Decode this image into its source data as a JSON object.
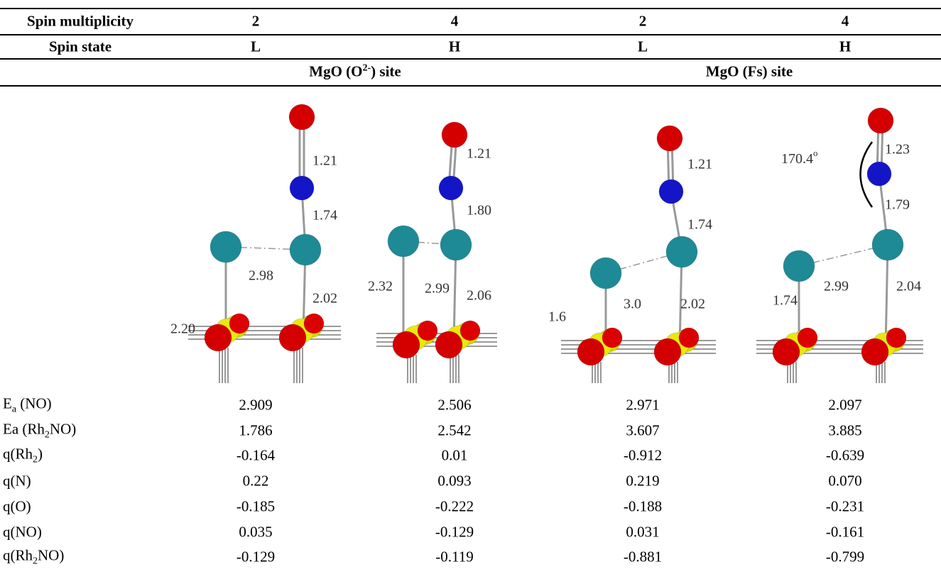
{
  "table": {
    "header_rows": [
      [
        "Spin multiplicity",
        "2",
        "4",
        "2",
        "4"
      ],
      [
        "Spin state",
        "L",
        "H",
        "L",
        "H"
      ]
    ],
    "site_groups": [
      {
        "text": "MgO (O",
        "sup": "2-",
        "after": ") site"
      },
      {
        "text": "MgO (Fs) site"
      }
    ],
    "figures": [
      {
        "labels": [
          "1.21",
          "1.74",
          "2.98",
          "2.02",
          "2.20"
        ]
      },
      {
        "labels": [
          "1.21",
          "1.80",
          "2.99",
          "2.32",
          "2.06"
        ]
      },
      {
        "labels": [
          "1.21",
          "1.74",
          "3.0",
          "2.02",
          "1.6"
        ]
      },
      {
        "labels": [
          "1.23",
          "1.79",
          "2.99",
          "2.04",
          "1.74"
        ],
        "angle": {
          "text": "170.4",
          "sup": "o"
        }
      }
    ],
    "rows": [
      {
        "label": {
          "text": "E",
          "sub": "a",
          "after": " (NO)"
        },
        "values": [
          "2.909",
          "2.506",
          "2.971",
          "2.097"
        ]
      },
      {
        "label": {
          "text": "Ea (Rh",
          "sub": "2",
          "after": "NO)"
        },
        "values": [
          "1.786",
          "2.542",
          "3.607",
          "3.885"
        ]
      },
      {
        "label": {
          "text": "q(Rh",
          "sub": "2",
          "after": ")"
        },
        "values": [
          "-0.164",
          "0.01",
          "-0.912",
          "-0.639"
        ]
      },
      {
        "label": {
          "text": "q(N)"
        },
        "values": [
          "0.22",
          "0.093",
          "0.219",
          "0.070"
        ]
      },
      {
        "label": {
          "text": "q(O)"
        },
        "values": [
          "-0.185",
          "-0.222",
          "-0.188",
          "-0.231"
        ]
      },
      {
        "label": {
          "text": "q(NO)"
        },
        "values": [
          "0.035",
          "-0.129",
          "0.031",
          "-0.161"
        ]
      },
      {
        "label": {
          "text": "q(Rh",
          "sub": "2",
          "after": "NO)"
        },
        "values": [
          "-0.129",
          "-0.119",
          "-0.881",
          "-0.799"
        ]
      }
    ]
  }
}
